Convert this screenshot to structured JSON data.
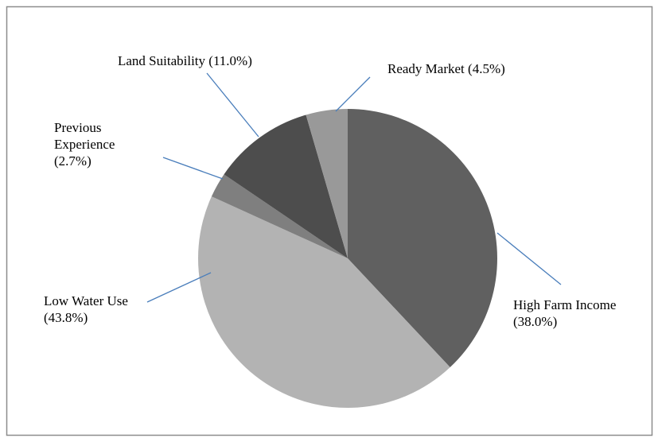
{
  "chart_data": {
    "type": "pie",
    "categories": [
      "High Farm Income",
      "Low Water Use",
      "Previous Experience",
      "Land Suitability",
      "Ready Market"
    ],
    "values": [
      38.0,
      43.8,
      2.7,
      11.0,
      4.5
    ],
    "value_labels": [
      "(38.0%)",
      "(43.8%)",
      "(2.7%)",
      "(11.0%)",
      "(4.5%)"
    ],
    "colors": [
      "#606060",
      "#b3b3b3",
      "#7f7f7f",
      "#4d4d4d",
      "#999999"
    ]
  }
}
